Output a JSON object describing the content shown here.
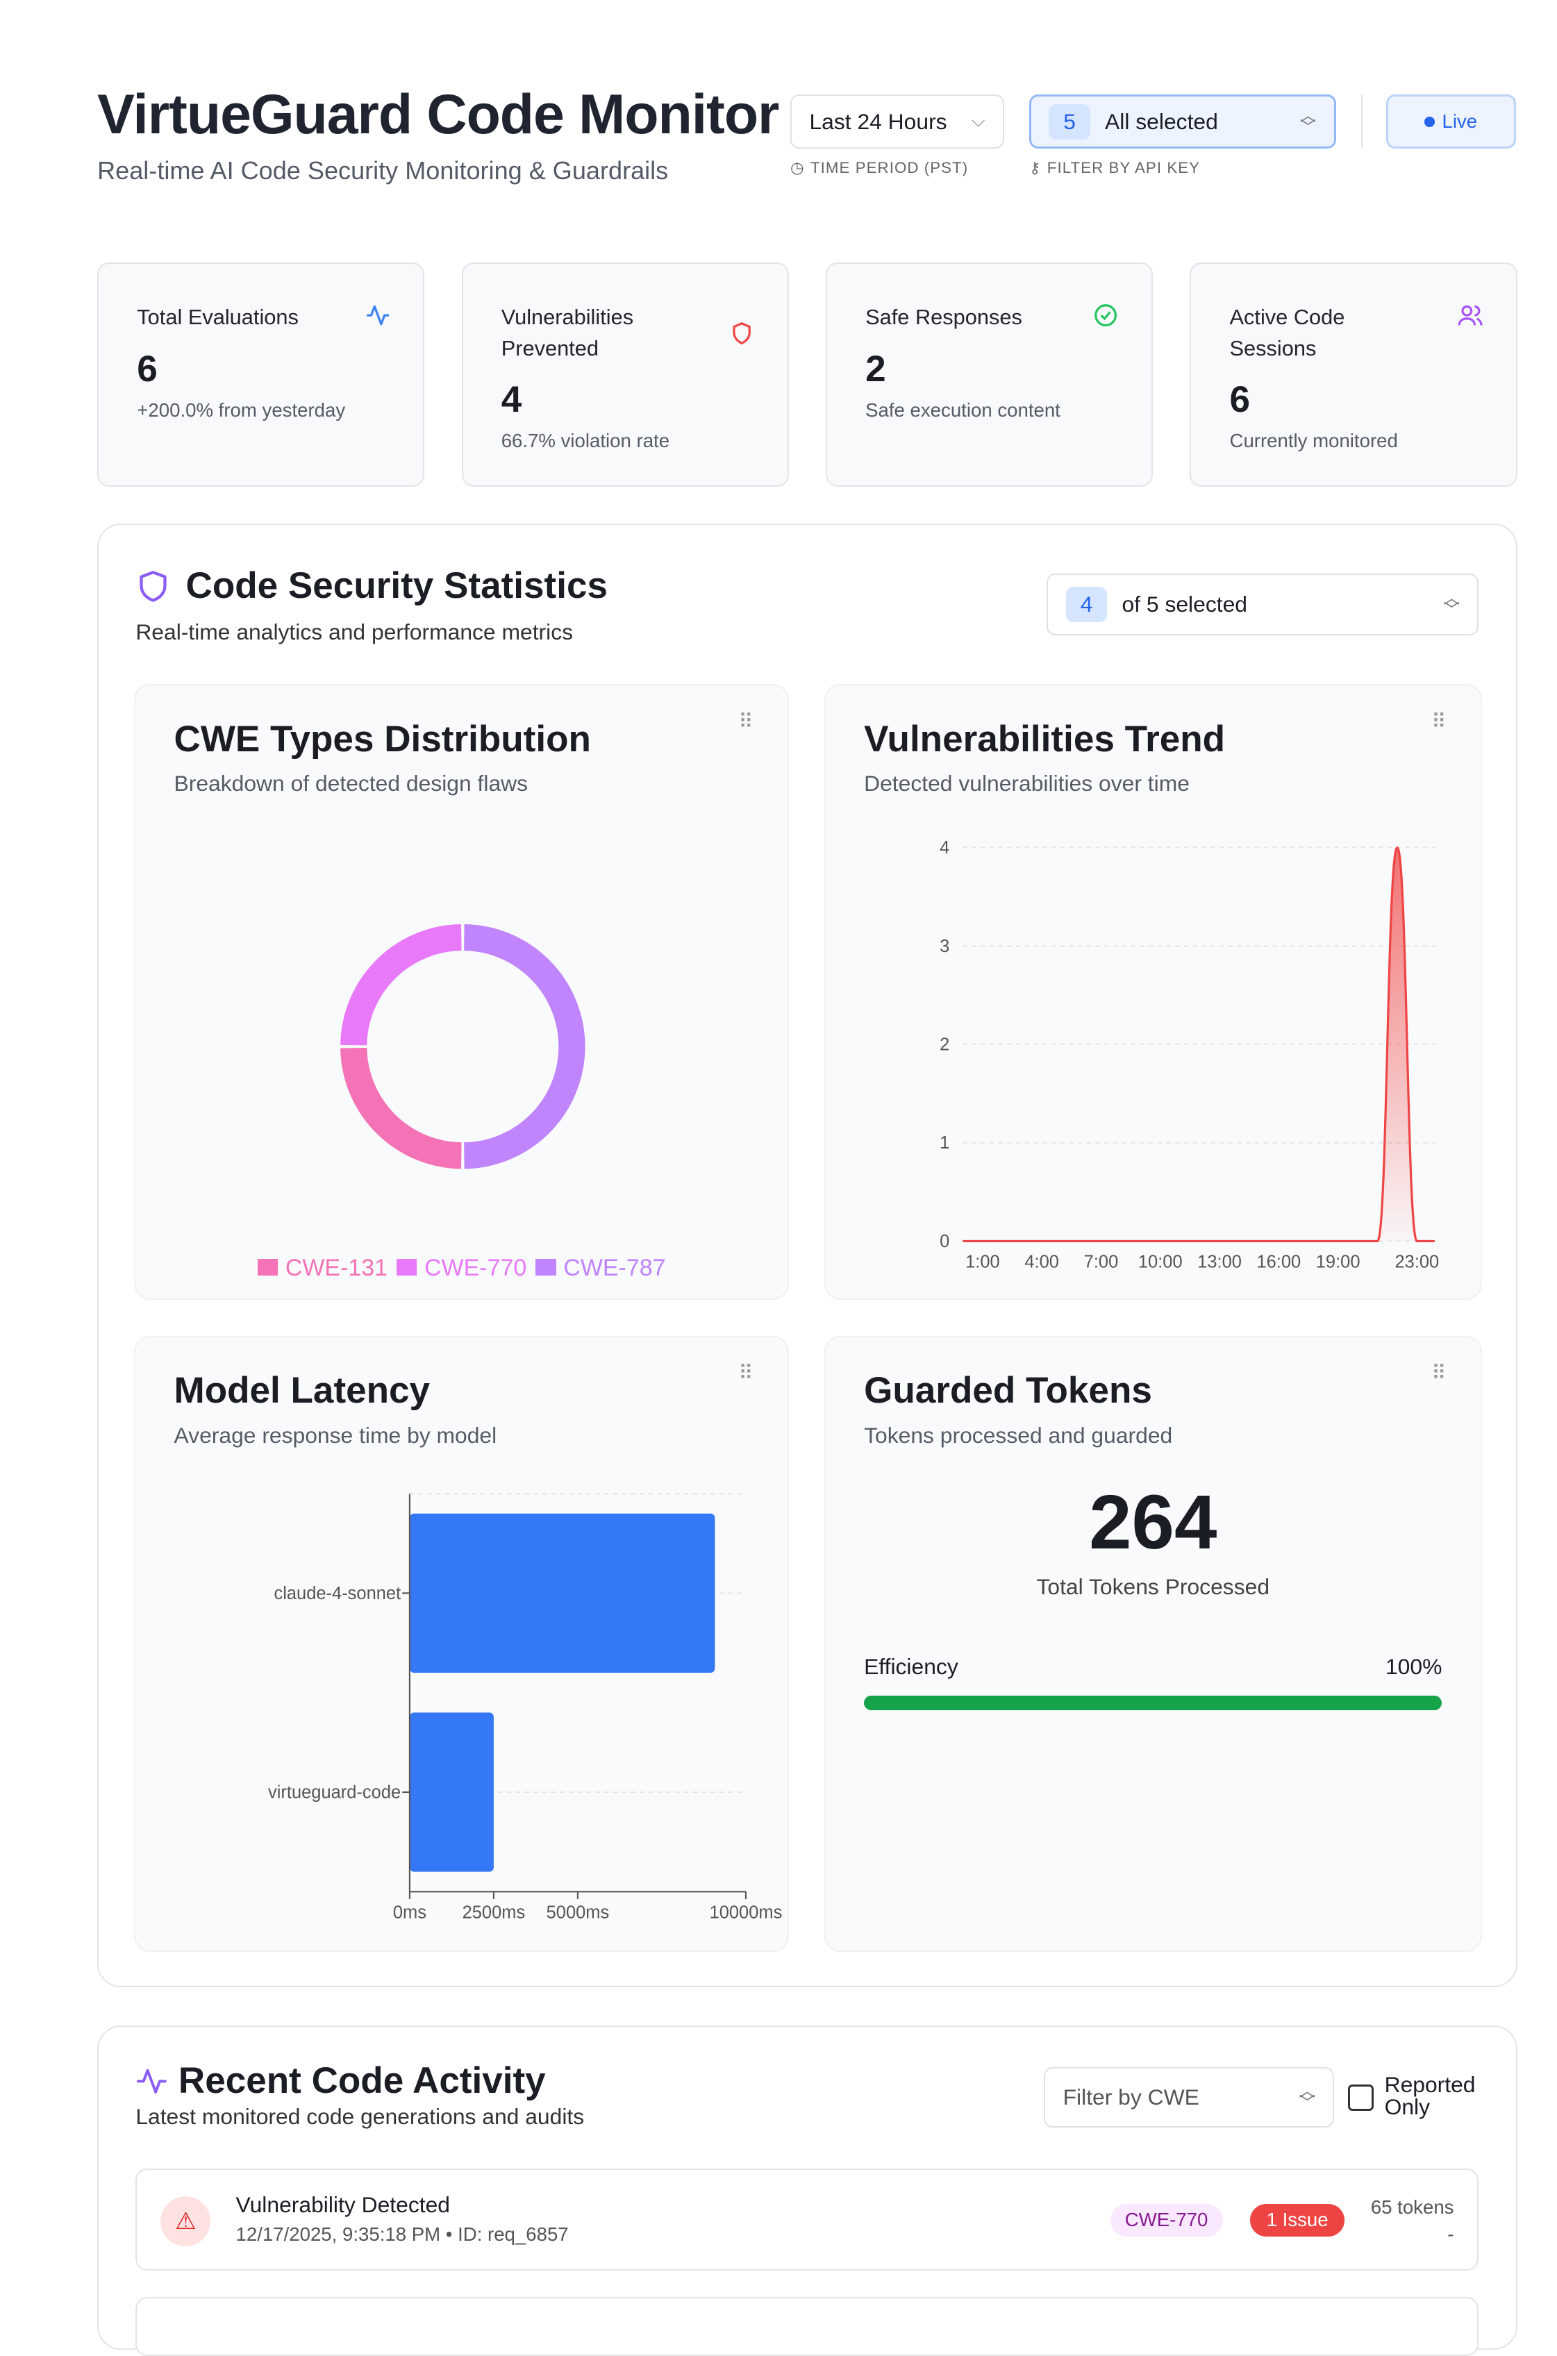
{
  "header": {
    "title": "VirtueGuard Code Monitor",
    "subtitle": "Real-time AI Code Security Monitoring & Guardrails",
    "time_period": {
      "value": "Last 24 Hours",
      "caption": "TIME PERIOD (PST)"
    },
    "api_key_filter": {
      "count": "5",
      "value": "All selected",
      "caption": "FILTER BY API KEY"
    },
    "live_label": "Live"
  },
  "stats": [
    {
      "label": "Total Evaluations",
      "value": "6",
      "sub": "+200.0% from yesterday",
      "icon": "activity-icon",
      "color": "#3b82f6"
    },
    {
      "label": "Vulnerabilities Prevented",
      "value": "4",
      "sub": "66.7% violation rate",
      "icon": "shield-icon",
      "color": "#ef4444"
    },
    {
      "label": "Safe Responses",
      "value": "2",
      "sub": "Safe execution content",
      "icon": "check-circle-icon",
      "color": "#22c55e"
    },
    {
      "label": "Active Code Sessions",
      "value": "6",
      "sub": "Currently monitored",
      "icon": "users-icon",
      "color": "#a855f7"
    }
  ],
  "statistics": {
    "title": "Code Security Statistics",
    "subtitle": "Real-time analytics and performance metrics",
    "select": {
      "count": "4",
      "value": "of 5 selected"
    }
  },
  "chart_data": [
    {
      "type": "pie",
      "title": "CWE Types Distribution",
      "subtitle": "Breakdown of detected design flaws",
      "donut": true,
      "categories": [
        "CWE-131",
        "CWE-770",
        "CWE-787"
      ],
      "values": [
        1,
        1,
        2
      ],
      "colors": [
        "#f472b6",
        "#e879f9",
        "#c084fc"
      ],
      "legend": "bottom"
    },
    {
      "type": "area",
      "title": "Vulnerabilities Trend",
      "subtitle": "Detected vulnerabilities over time",
      "x": [
        "0:00",
        "1:00",
        "2:00",
        "3:00",
        "4:00",
        "5:00",
        "6:00",
        "7:00",
        "8:00",
        "9:00",
        "10:00",
        "11:00",
        "12:00",
        "13:00",
        "14:00",
        "15:00",
        "16:00",
        "17:00",
        "18:00",
        "19:00",
        "20:00",
        "21:00",
        "22:00",
        "23:00"
      ],
      "values": [
        0,
        0,
        0,
        0,
        0,
        0,
        0,
        0,
        0,
        0,
        0,
        0,
        0,
        0,
        0,
        0,
        0,
        0,
        0,
        0,
        0,
        0,
        4,
        0
      ],
      "xticks": [
        "1:00",
        "4:00",
        "7:00",
        "10:00",
        "13:00",
        "16:00",
        "19:00",
        "23:00"
      ],
      "yticks": [
        "0",
        "1",
        "2",
        "3",
        "4"
      ],
      "ylim": [
        0,
        4
      ],
      "color": "#ef4444",
      "grid": true
    },
    {
      "type": "bar",
      "orientation": "horizontal",
      "title": "Model Latency",
      "subtitle": "Average response time by model",
      "categories": [
        "claude-4-sonnet",
        "virtueguard-code"
      ],
      "values": [
        9080,
        2500
      ],
      "xticks": [
        "0ms",
        "2500ms",
        "5000ms",
        "10000ms"
      ],
      "xlim": [
        0,
        10000
      ],
      "color": "#3478f6"
    }
  ],
  "tokens": {
    "title": "Guarded Tokens",
    "subtitle": "Tokens processed and guarded",
    "value": "264",
    "value_label": "Total Tokens Processed",
    "efficiency_label": "Efficiency",
    "efficiency": "100%",
    "efficiency_fraction": 1.0,
    "color": "#16a34a"
  },
  "activity": {
    "title": "Recent Code Activity",
    "subtitle": "Latest monitored code generations and audits",
    "filter_placeholder": "Filter by CWE",
    "reported_label": "Reported Only",
    "items": [
      {
        "title": "Vulnerability Detected",
        "meta": "12/17/2025, 9:35:18 PM • ID: req_6857",
        "cwe": "CWE-770",
        "issues": "1 Issue",
        "tokens": "65 tokens",
        "extra": "-"
      }
    ]
  }
}
